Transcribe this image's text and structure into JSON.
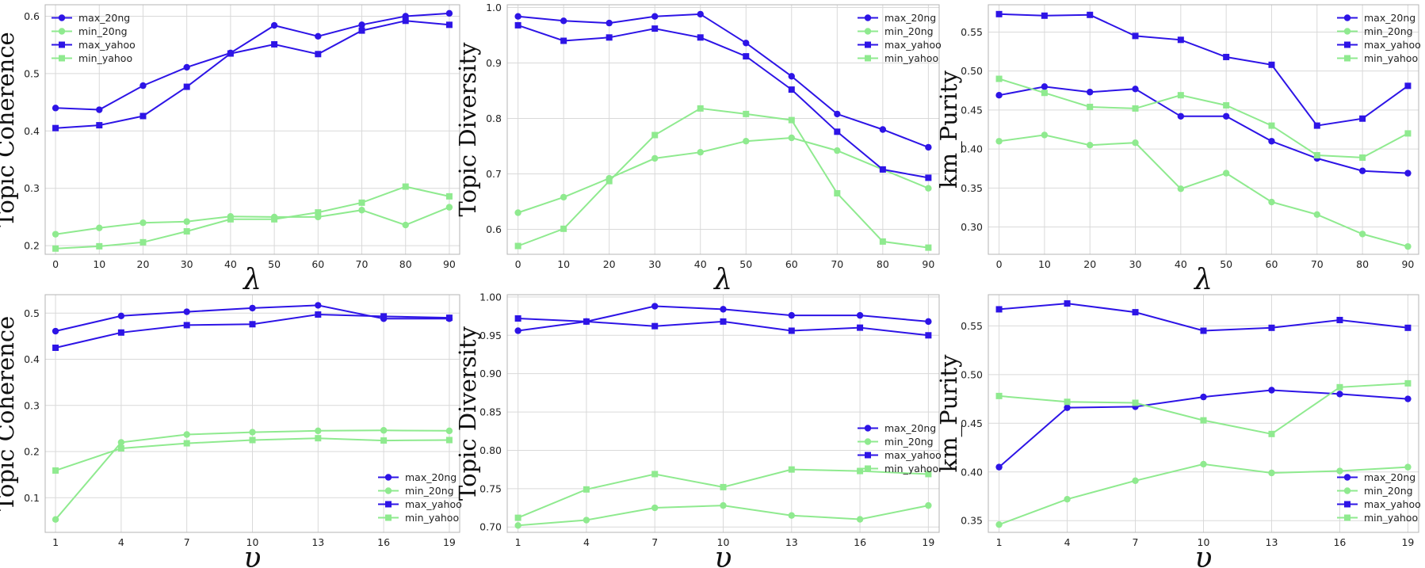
{
  "colors": {
    "max": "#2d14e6",
    "min": "#8fea8f"
  },
  "chart_data": [
    {
      "type": "line",
      "xlabel": "λ",
      "ylabel": "Topic Coherence",
      "x": [
        0,
        10,
        20,
        30,
        40,
        50,
        60,
        70,
        80,
        90
      ],
      "x_ticks": [
        "0",
        "10",
        "20",
        "30",
        "40",
        "50",
        "60",
        "70",
        "80",
        "90"
      ],
      "ylim": [
        0.185,
        0.62
      ],
      "y_ticks": [
        0.2,
        0.3,
        0.4,
        0.5,
        0.6
      ],
      "y_tick_labels": [
        "0.2",
        "0.3",
        "0.4",
        "0.5",
        "0.6"
      ],
      "legend": "top-left",
      "grid": true,
      "series": [
        {
          "name": "max_20ng",
          "color_key": "max",
          "marker": "circle",
          "values": [
            0.44,
            0.437,
            0.479,
            0.511,
            0.536,
            0.584,
            0.565,
            0.585,
            0.6,
            0.605
          ]
        },
        {
          "name": "min_20ng",
          "color_key": "min",
          "marker": "circle",
          "values": [
            0.22,
            0.231,
            0.24,
            0.242,
            0.251,
            0.25,
            0.25,
            0.262,
            0.236,
            0.267
          ]
        },
        {
          "name": "max_yahoo",
          "color_key": "max",
          "marker": "square",
          "values": [
            0.405,
            0.41,
            0.426,
            0.477,
            0.535,
            0.551,
            0.534,
            0.575,
            0.592,
            0.585
          ]
        },
        {
          "name": "min_yahoo",
          "color_key": "min",
          "marker": "square",
          "values": [
            0.195,
            0.199,
            0.206,
            0.225,
            0.246,
            0.246,
            0.258,
            0.275,
            0.303,
            0.286
          ]
        }
      ]
    },
    {
      "type": "line",
      "xlabel": "λ",
      "ylabel": "Topic Diversity",
      "x": [
        0,
        10,
        20,
        30,
        40,
        50,
        60,
        70,
        80,
        90
      ],
      "x_ticks": [
        "0",
        "10",
        "20",
        "30",
        "40",
        "50",
        "60",
        "70",
        "80",
        "90"
      ],
      "ylim": [
        0.555,
        1.005
      ],
      "y_ticks": [
        0.6,
        0.7,
        0.8,
        0.9,
        1.0
      ],
      "y_tick_labels": [
        "0.6",
        "0.7",
        "0.8",
        "0.9",
        "1.0"
      ],
      "legend": "top-right",
      "grid": true,
      "series": [
        {
          "name": "max_20ng",
          "color_key": "max",
          "marker": "circle",
          "values": [
            0.984,
            0.976,
            0.972,
            0.984,
            0.988,
            0.936,
            0.876,
            0.808,
            0.78,
            0.748
          ]
        },
        {
          "name": "min_20ng",
          "color_key": "min",
          "marker": "circle",
          "values": [
            0.63,
            0.658,
            0.692,
            0.728,
            0.739,
            0.759,
            0.765,
            0.742,
            0.708,
            0.674
          ]
        },
        {
          "name": "max_yahoo",
          "color_key": "max",
          "marker": "square",
          "values": [
            0.968,
            0.94,
            0.946,
            0.962,
            0.946,
            0.912,
            0.852,
            0.776,
            0.708,
            0.693
          ]
        },
        {
          "name": "min_yahoo",
          "color_key": "min",
          "marker": "square",
          "values": [
            0.57,
            0.601,
            0.687,
            0.77,
            0.818,
            0.808,
            0.797,
            0.665,
            0.578,
            0.567
          ]
        }
      ]
    },
    {
      "type": "line",
      "xlabel": "λ",
      "ylabel": "km_Purity",
      "x": [
        0,
        10,
        20,
        30,
        40,
        50,
        60,
        70,
        80,
        90
      ],
      "x_ticks": [
        "0",
        "10",
        "20",
        "30",
        "40",
        "50",
        "60",
        "70",
        "80",
        "90"
      ],
      "ylim": [
        0.265,
        0.585
      ],
      "y_ticks": [
        0.3,
        0.35,
        0.4,
        0.45,
        0.5,
        0.55
      ],
      "y_tick_labels": [
        "0.30",
        "0.35",
        "0.40",
        "0.45",
        "0.50",
        "0.55"
      ],
      "legend": "top-right",
      "grid": true,
      "series": [
        {
          "name": "max_20ng",
          "color_key": "max",
          "marker": "circle",
          "values": [
            0.469,
            0.48,
            0.473,
            0.477,
            0.442,
            0.442,
            0.41,
            0.388,
            0.372,
            0.369
          ]
        },
        {
          "name": "min_20ng",
          "color_key": "min",
          "marker": "circle",
          "values": [
            0.41,
            0.418,
            0.405,
            0.408,
            0.349,
            0.369,
            0.332,
            0.316,
            0.291,
            0.275
          ]
        },
        {
          "name": "max_yahoo",
          "color_key": "max",
          "marker": "square",
          "values": [
            0.573,
            0.571,
            0.572,
            0.545,
            0.54,
            0.518,
            0.508,
            0.43,
            0.439,
            0.481
          ]
        },
        {
          "name": "min_yahoo",
          "color_key": "min",
          "marker": "square",
          "values": [
            0.49,
            0.472,
            0.454,
            0.452,
            0.469,
            0.456,
            0.43,
            0.392,
            0.389,
            0.42
          ]
        }
      ]
    },
    {
      "type": "line",
      "xlabel": "υ",
      "ylabel": "Topic Coherence",
      "x": [
        1,
        4,
        7,
        10,
        13,
        16,
        19
      ],
      "x_ticks": [
        "1",
        "4",
        "7",
        "10",
        "13",
        "16",
        "19"
      ],
      "ylim": [
        0.025,
        0.54
      ],
      "y_ticks": [
        0.1,
        0.2,
        0.3,
        0.4,
        0.5
      ],
      "y_tick_labels": [
        "0.1",
        "0.2",
        "0.3",
        "0.4",
        "0.5"
      ],
      "legend": "bottom-right",
      "grid": true,
      "series": [
        {
          "name": "max_20ng",
          "color_key": "max",
          "marker": "circle",
          "values": [
            0.461,
            0.494,
            0.503,
            0.511,
            0.517,
            0.488,
            0.488
          ]
        },
        {
          "name": "min_20ng",
          "color_key": "min",
          "marker": "circle",
          "values": [
            0.053,
            0.22,
            0.237,
            0.242,
            0.245,
            0.246,
            0.245
          ]
        },
        {
          "name": "max_yahoo",
          "color_key": "max",
          "marker": "square",
          "values": [
            0.425,
            0.458,
            0.474,
            0.476,
            0.497,
            0.493,
            0.49
          ]
        },
        {
          "name": "min_yahoo",
          "color_key": "min",
          "marker": "square",
          "values": [
            0.159,
            0.207,
            0.218,
            0.225,
            0.229,
            0.224,
            0.225
          ]
        }
      ]
    },
    {
      "type": "line",
      "xlabel": "υ",
      "ylabel": "Topic Diversity",
      "x": [
        1,
        4,
        7,
        10,
        13,
        16,
        19
      ],
      "x_ticks": [
        "1",
        "4",
        "7",
        "10",
        "13",
        "16",
        "19"
      ],
      "ylim": [
        0.693,
        1.003
      ],
      "y_ticks": [
        0.7,
        0.75,
        0.8,
        0.85,
        0.9,
        0.95,
        1.0
      ],
      "y_tick_labels": [
        "0.70",
        "0.75",
        "0.80",
        "0.85",
        "0.90",
        "0.95",
        "1.00"
      ],
      "legend": "middle-right",
      "grid": true,
      "series": [
        {
          "name": "max_20ng",
          "color_key": "max",
          "marker": "circle",
          "values": [
            0.956,
            0.968,
            0.988,
            0.984,
            0.976,
            0.976,
            0.968
          ]
        },
        {
          "name": "min_20ng",
          "color_key": "min",
          "marker": "circle",
          "values": [
            0.702,
            0.709,
            0.725,
            0.728,
            0.715,
            0.71,
            0.728
          ]
        },
        {
          "name": "max_yahoo",
          "color_key": "max",
          "marker": "square",
          "values": [
            0.972,
            0.968,
            0.962,
            0.968,
            0.956,
            0.96,
            0.95
          ]
        },
        {
          "name": "min_yahoo",
          "color_key": "min",
          "marker": "square",
          "values": [
            0.712,
            0.749,
            0.769,
            0.752,
            0.775,
            0.773,
            0.769
          ]
        }
      ]
    },
    {
      "type": "line",
      "xlabel": "υ",
      "ylabel": "km_Purity",
      "x": [
        1,
        4,
        7,
        10,
        13,
        16,
        19
      ],
      "x_ticks": [
        "1",
        "4",
        "7",
        "10",
        "13",
        "16",
        "19"
      ],
      "ylim": [
        0.338,
        0.582
      ],
      "y_ticks": [
        0.35,
        0.4,
        0.45,
        0.5,
        0.55
      ],
      "y_tick_labels": [
        "0.35",
        "0.40",
        "0.45",
        "0.50",
        "0.55"
      ],
      "legend": "bottom-right",
      "grid": true,
      "series": [
        {
          "name": "max_20ng",
          "color_key": "max",
          "marker": "circle",
          "values": [
            0.405,
            0.466,
            0.467,
            0.477,
            0.484,
            0.48,
            0.475
          ]
        },
        {
          "name": "min_20ng",
          "color_key": "min",
          "marker": "circle",
          "values": [
            0.346,
            0.372,
            0.391,
            0.408,
            0.399,
            0.401,
            0.405
          ]
        },
        {
          "name": "max_yahoo",
          "color_key": "max",
          "marker": "square",
          "values": [
            0.567,
            0.573,
            0.564,
            0.545,
            0.548,
            0.556,
            0.548
          ]
        },
        {
          "name": "min_yahoo",
          "color_key": "min",
          "marker": "square",
          "values": [
            0.478,
            0.472,
            0.471,
            0.453,
            0.439,
            0.487,
            0.491
          ]
        }
      ]
    }
  ]
}
